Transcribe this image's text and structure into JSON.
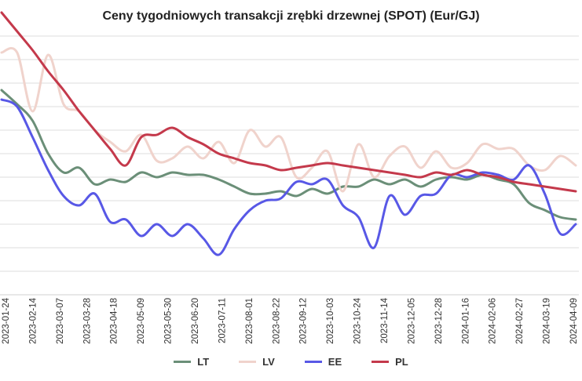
{
  "chart_data": {
    "type": "line",
    "title": "Ceny tygodniowych transakcji zrębki drzewnej (SPOT) (Eur/GJ)",
    "x_tick_labels": [
      "2023-01-24",
      "2023-02-14",
      "2023-03-07",
      "2023-03-28",
      "2023-04-18",
      "2023-05-09",
      "2023-05-30",
      "2023-06-20",
      "2023-07-11",
      "2023-08-01",
      "2023-08-22",
      "2023-09-12",
      "2023-10-03",
      "2023-10-24",
      "2023-11-14",
      "2023-12-05",
      "2023-12-28",
      "2024-01-16",
      "2024-02-06",
      "2024-02-27",
      "2024-03-19",
      "2024-04-09"
    ],
    "grid": true,
    "legend_position": "bottom",
    "series": [
      {
        "name": "LT",
        "color": "#6b8f78",
        "values": [
          12.7,
          12.1,
          11.4,
          10.0,
          9.2,
          9.4,
          8.7,
          8.9,
          8.8,
          9.2,
          9.0,
          9.2,
          9.1,
          9.1,
          8.9,
          8.6,
          8.3,
          8.3,
          8.4,
          8.2,
          8.5,
          8.3,
          8.6,
          8.6,
          8.9,
          8.7,
          8.9,
          8.6,
          8.9,
          9.0,
          8.9,
          9.1,
          8.9,
          8.7,
          7.9,
          7.6,
          7.3,
          7.2
        ]
      },
      {
        "name": "LV",
        "color": "#f0d3cc",
        "values": [
          14.3,
          14.3,
          11.8,
          14.2,
          12.1,
          11.8,
          11.0,
          10.5,
          10.1,
          10.8,
          9.7,
          9.8,
          10.3,
          9.8,
          10.5,
          9.6,
          11.0,
          10.3,
          10.7,
          9.0,
          9.4,
          10.1,
          8.4,
          10.4,
          9.0,
          9.9,
          10.3,
          9.4,
          10.1,
          9.4,
          9.6,
          10.4,
          10.2,
          10.2,
          9.5,
          9.3,
          9.9,
          9.5
        ]
      },
      {
        "name": "EE",
        "color": "#5858e6",
        "values": [
          12.3,
          12.0,
          10.7,
          9.3,
          8.2,
          7.8,
          8.3,
          7.1,
          7.2,
          6.5,
          7.0,
          6.5,
          7.0,
          6.4,
          5.7,
          6.8,
          7.6,
          8.0,
          8.1,
          8.8,
          8.7,
          8.9,
          7.8,
          7.3,
          6.0,
          8.2,
          7.4,
          8.2,
          8.3,
          9.1,
          9.0,
          9.2,
          9.1,
          8.9,
          9.5,
          8.3,
          6.6,
          7.0
        ]
      },
      {
        "name": "PL",
        "color": "#c4394b",
        "values": [
          16.0,
          15.2,
          14.4,
          13.5,
          12.7,
          11.8,
          11.0,
          10.2,
          9.5,
          10.7,
          10.8,
          11.1,
          10.7,
          10.4,
          10.0,
          9.8,
          9.6,
          9.5,
          9.3,
          9.4,
          9.5,
          9.6,
          9.5,
          9.4,
          9.3,
          9.2,
          9.1,
          9.0,
          9.2,
          9.1,
          9.3,
          9.1,
          9.0,
          8.8,
          8.7,
          8.6,
          8.5,
          8.4
        ]
      }
    ]
  }
}
